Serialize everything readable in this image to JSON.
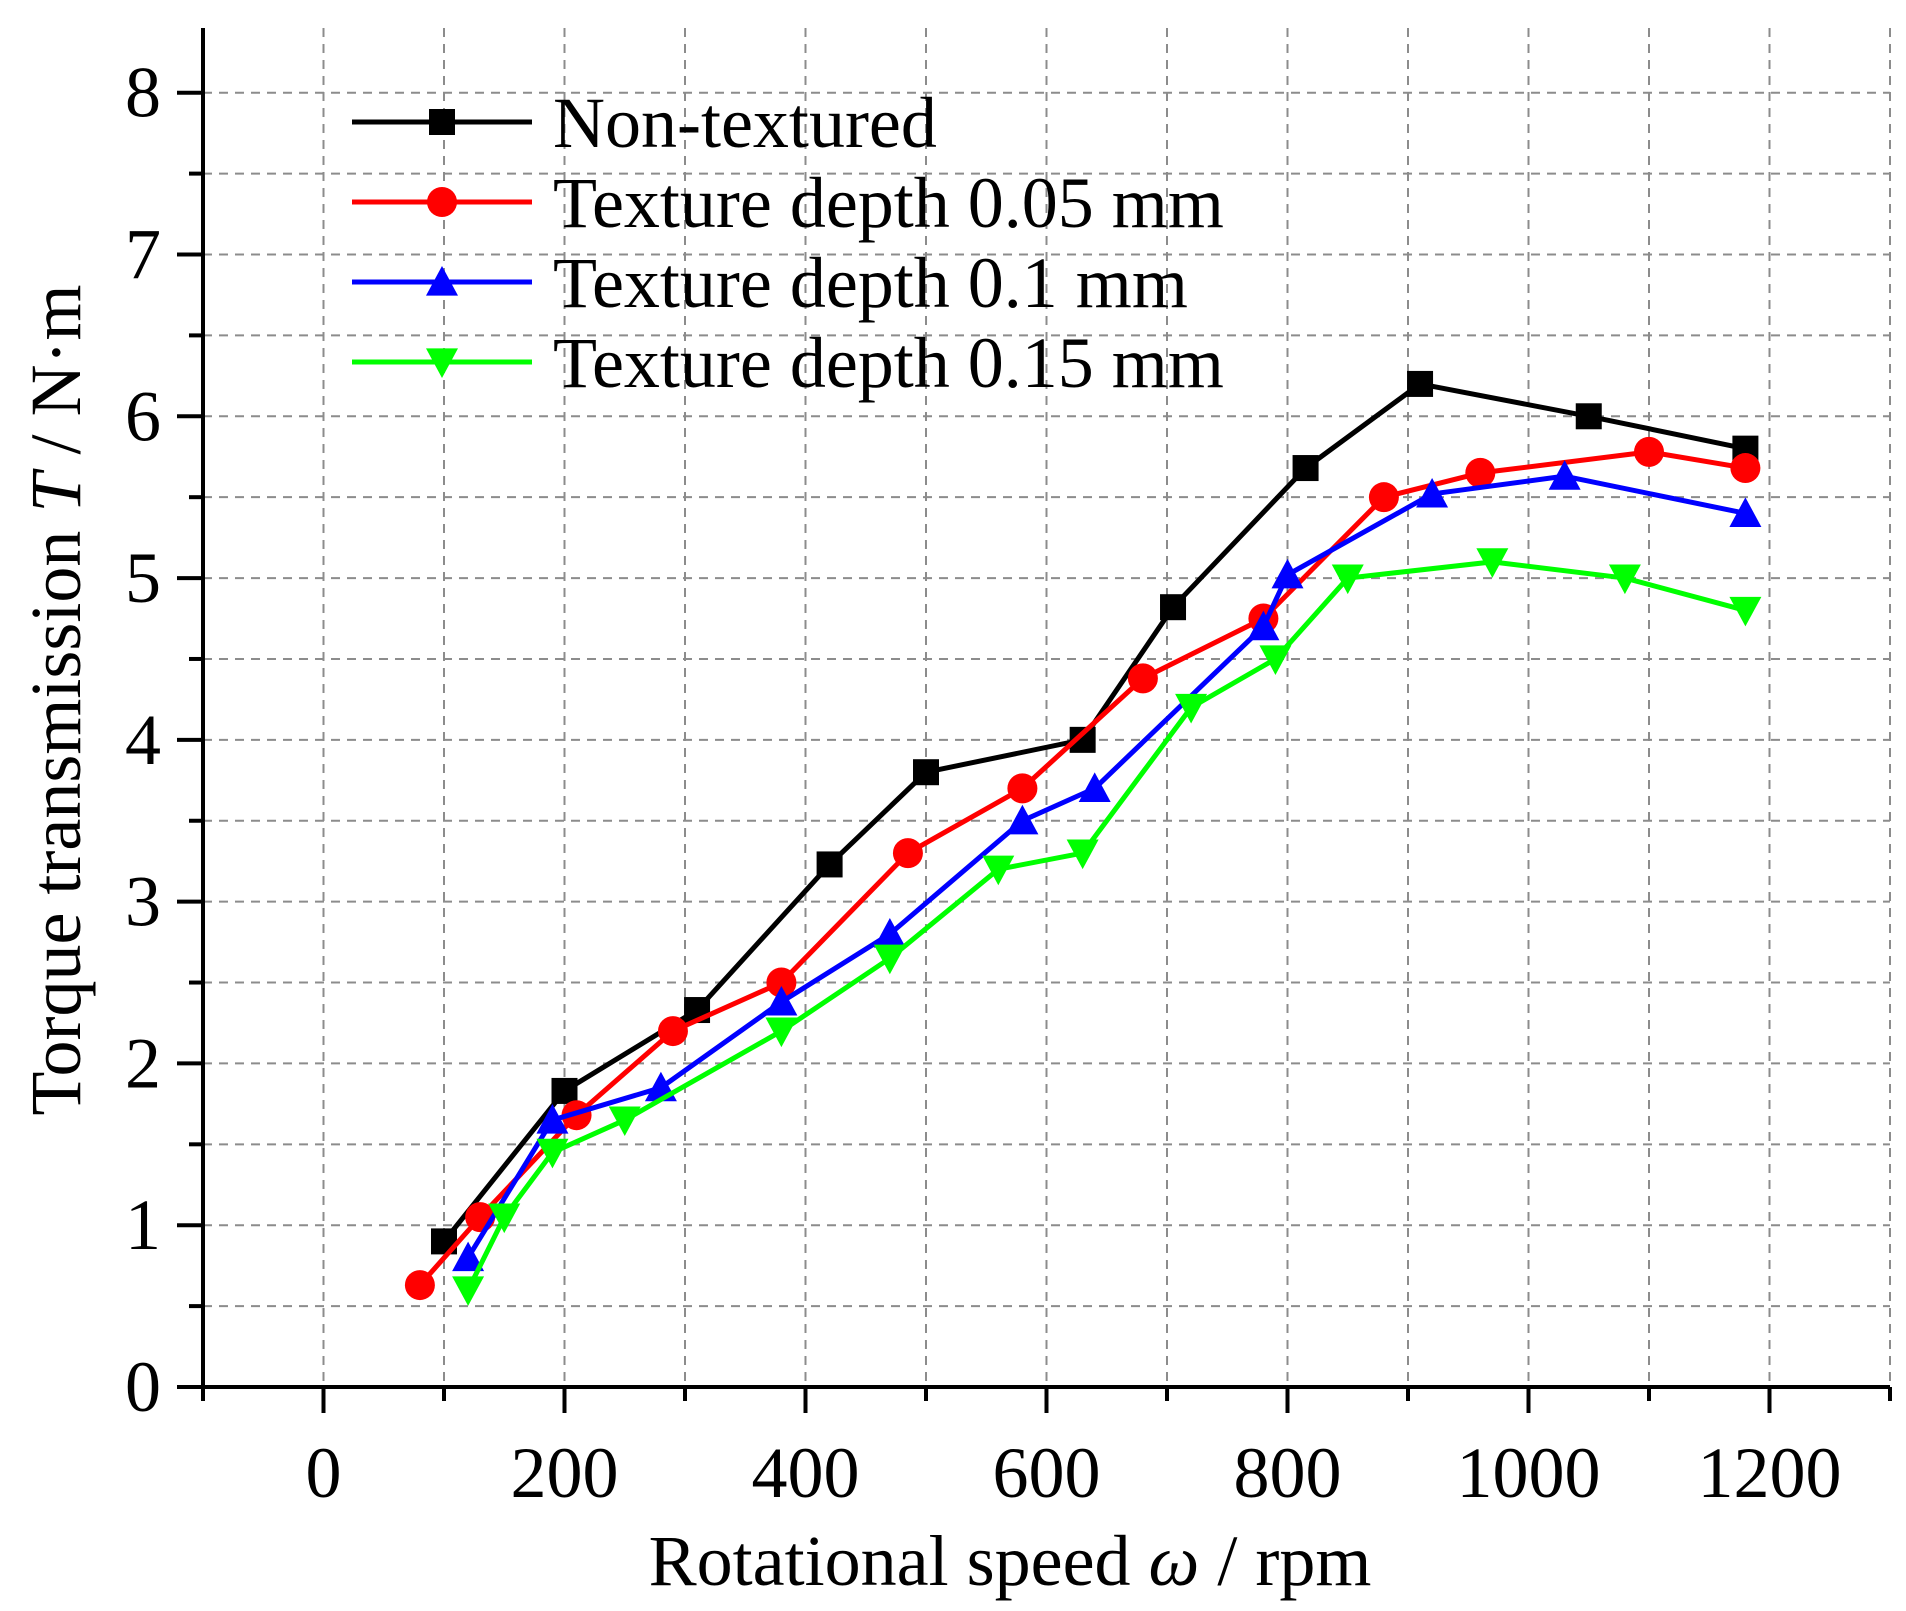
{
  "chart_data": {
    "type": "line",
    "title": "",
    "xlabel": {
      "pre": "Rotational speed ",
      "var": "ω",
      "post": " / rpm"
    },
    "ylabel": {
      "pre": "Torque transmission ",
      "var": "T",
      "post": " / N·m"
    },
    "xlim": [
      -100,
      1300
    ],
    "ylim": [
      0,
      8.4
    ],
    "xticks": [
      0,
      200,
      400,
      600,
      800,
      1000,
      1200
    ],
    "yticks": [
      0,
      1,
      2,
      3,
      4,
      5,
      6,
      7,
      8
    ],
    "grid": true,
    "legend_position": "top-left",
    "series": [
      {
        "name": "Non-textured",
        "color": "#000000",
        "marker": "square",
        "x": [
          100,
          200,
          310,
          420,
          500,
          630,
          705,
          815,
          910,
          1050,
          1180
        ],
        "y": [
          0.9,
          1.83,
          2.33,
          3.23,
          3.8,
          4.0,
          4.82,
          5.68,
          6.2,
          6.0,
          5.8
        ]
      },
      {
        "name": "Texture depth 0.05 mm",
        "color": "#ff0000",
        "marker": "circle",
        "x": [
          80,
          130,
          210,
          290,
          380,
          485,
          580,
          680,
          780,
          880,
          960,
          1100,
          1180
        ],
        "y": [
          0.63,
          1.05,
          1.68,
          2.2,
          2.5,
          3.3,
          3.7,
          4.38,
          4.75,
          5.5,
          5.65,
          5.78,
          5.68
        ]
      },
      {
        "name": "Texture depth 0.1 mm",
        "color": "#0000ff",
        "marker": "triangle-up",
        "x": [
          120,
          190,
          280,
          380,
          470,
          580,
          640,
          780,
          800,
          920,
          1030,
          1180
        ],
        "y": [
          0.8,
          1.65,
          1.85,
          2.38,
          2.8,
          3.5,
          3.7,
          4.7,
          5.02,
          5.52,
          5.63,
          5.4
        ]
      },
      {
        "name": "Texture depth 0.15 mm",
        "color": "#00ff00",
        "marker": "triangle-down",
        "x": [
          120,
          150,
          190,
          250,
          380,
          470,
          560,
          630,
          720,
          790,
          850,
          970,
          1080,
          1180
        ],
        "y": [
          0.6,
          1.05,
          1.45,
          1.65,
          2.2,
          2.65,
          3.2,
          3.3,
          4.2,
          4.5,
          5.0,
          5.1,
          5.0,
          4.8
        ]
      }
    ]
  }
}
